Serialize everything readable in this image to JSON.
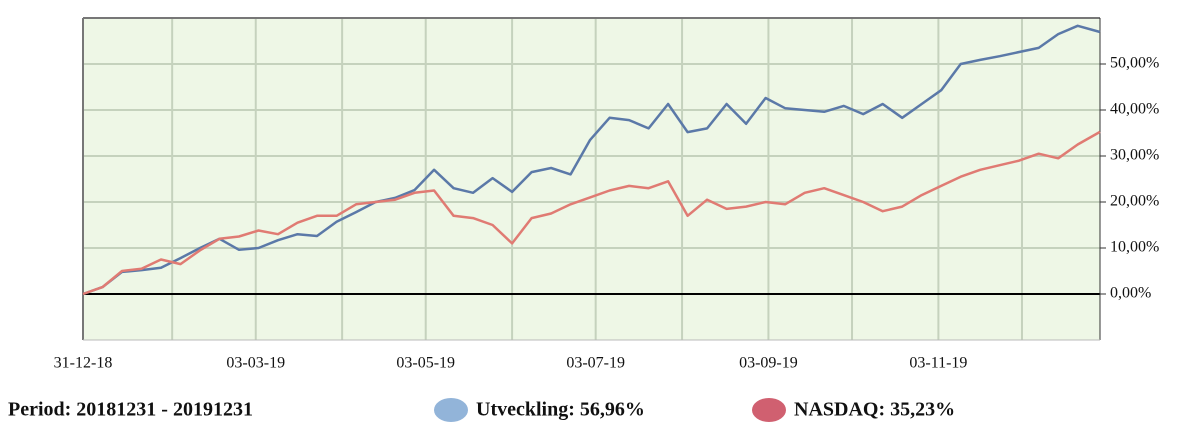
{
  "chart_data": {
    "type": "line",
    "period": "Period: 20181231 - 20191231",
    "x": [
      "2018-12-31",
      "2019-01-07",
      "2019-01-14",
      "2019-01-21",
      "2019-01-28",
      "2019-02-04",
      "2019-02-11",
      "2019-02-18",
      "2019-02-25",
      "2019-03-04",
      "2019-03-11",
      "2019-03-18",
      "2019-03-25",
      "2019-04-01",
      "2019-04-08",
      "2019-04-15",
      "2019-04-22",
      "2019-04-29",
      "2019-05-06",
      "2019-05-13",
      "2019-05-20",
      "2019-05-27",
      "2019-06-03",
      "2019-06-10",
      "2019-06-17",
      "2019-06-24",
      "2019-07-01",
      "2019-07-08",
      "2019-07-15",
      "2019-07-22",
      "2019-07-29",
      "2019-08-05",
      "2019-08-12",
      "2019-08-19",
      "2019-08-26",
      "2019-09-02",
      "2019-09-09",
      "2019-09-16",
      "2019-09-23",
      "2019-09-30",
      "2019-10-07",
      "2019-10-14",
      "2019-10-21",
      "2019-10-28",
      "2019-11-04",
      "2019-11-11",
      "2019-11-18",
      "2019-11-25",
      "2019-12-02",
      "2019-12-09",
      "2019-12-16",
      "2019-12-23",
      "2019-12-31"
    ],
    "series": [
      {
        "name": "Utveckling: 56,96%",
        "color": "#5b79a8",
        "marker_color": "#92b4d9",
        "values": [
          0,
          1.5,
          4.8,
          5.2,
          5.7,
          7.8,
          10,
          12,
          9.6,
          10,
          11.7,
          13,
          12.6,
          15.7,
          17.8,
          20,
          20.9,
          22.6,
          27,
          23,
          22,
          25.2,
          22.2,
          26.5,
          27.4,
          26,
          33.5,
          38.3,
          37.8,
          36,
          41.3,
          35.2,
          36,
          41.3,
          37,
          42.6,
          40.4,
          40,
          39.6,
          40.9,
          39.1,
          41.3,
          38.3,
          41.3,
          44.3,
          50,
          50.9,
          51.7,
          52.6,
          53.5,
          56.5,
          58.3,
          56.96
        ]
      },
      {
        "name": "NASDAQ: 35,23%",
        "color": "#e07b73",
        "marker_color": "#d06070",
        "values": [
          0,
          1.5,
          5,
          5.5,
          7.5,
          6.5,
          9.5,
          12,
          12.5,
          13.8,
          13,
          15.5,
          17,
          17,
          19.5,
          20,
          20.5,
          22,
          22.5,
          17,
          16.5,
          15,
          11,
          16.5,
          17.5,
          19.5,
          21,
          22.5,
          23.5,
          23,
          24.5,
          17,
          20.5,
          18.5,
          19,
          20,
          19.5,
          22,
          23,
          21.5,
          20,
          18,
          19,
          21.5,
          23.5,
          25.5,
          27,
          28,
          29,
          30.5,
          29.5,
          32.5,
          35.23
        ]
      }
    ],
    "xlim": [
      "2018-12-31",
      "2019-12-31"
    ],
    "xticks": [
      {
        "value": "2018-12-31",
        "label": "31-12-18"
      },
      {
        "value": "2019-03-03",
        "label": "03-03-19"
      },
      {
        "value": "2019-05-03",
        "label": "03-05-19"
      },
      {
        "value": "2019-07-03",
        "label": "03-07-19"
      },
      {
        "value": "2019-09-03",
        "label": "03-09-19"
      },
      {
        "value": "2019-11-03",
        "label": "03-11-19"
      }
    ],
    "xgrid": [
      "2019-02-01",
      "2019-03-03",
      "2019-04-03",
      "2019-05-03",
      "2019-06-03",
      "2019-07-03",
      "2019-08-03",
      "2019-09-03",
      "2019-10-03",
      "2019-11-03",
      "2019-12-03"
    ],
    "ylim": [
      -10,
      60
    ],
    "yticks": [
      {
        "value": 0,
        "label": "0,00%"
      },
      {
        "value": 10,
        "label": "10,00%"
      },
      {
        "value": 20,
        "label": "20,00%"
      },
      {
        "value": 30,
        "label": "30,00%"
      },
      {
        "value": 40,
        "label": "40,00%"
      },
      {
        "value": 50,
        "label": "50,00%"
      }
    ],
    "grid": true
  }
}
